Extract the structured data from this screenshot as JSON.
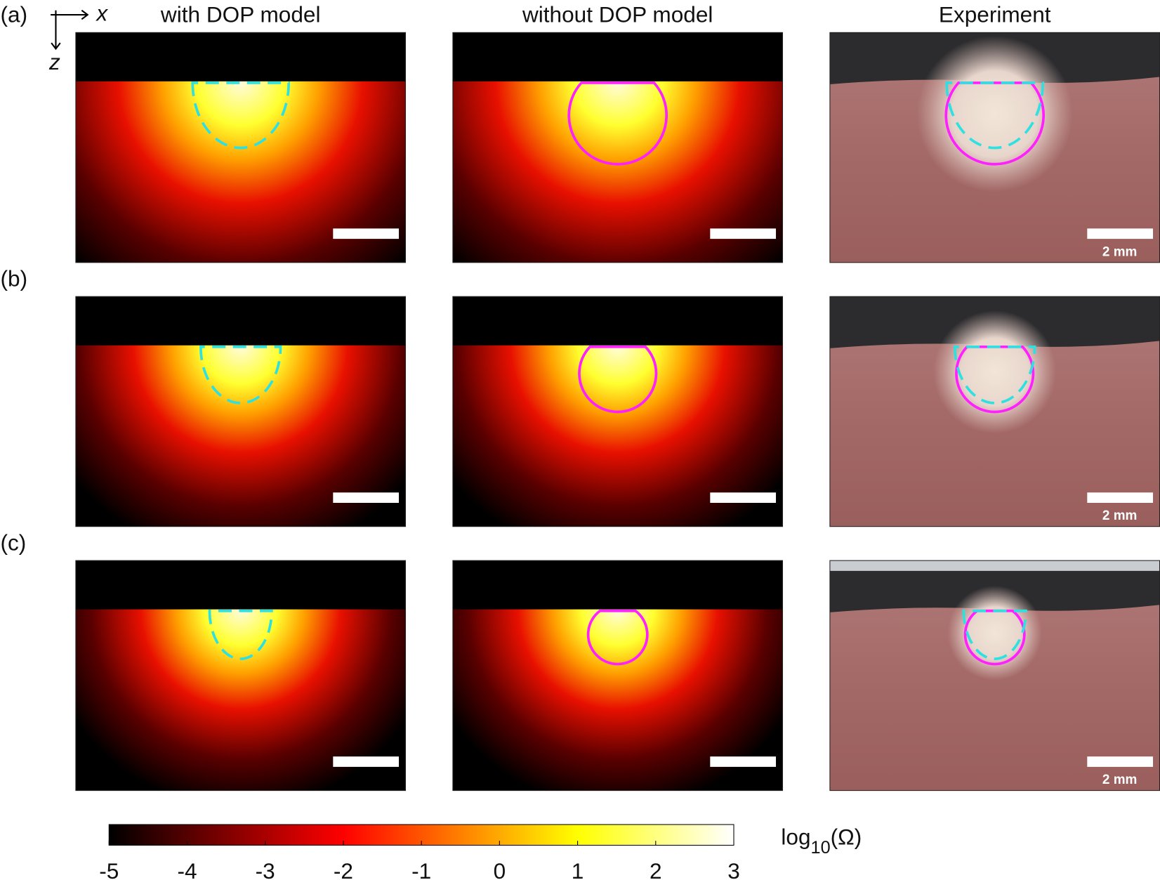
{
  "figure": {
    "column_titles": [
      "with DOP model",
      "without DOP model",
      "Experiment"
    ],
    "row_labels": [
      "(a)",
      "(b)",
      "(c)"
    ],
    "axes": {
      "x": "x",
      "z": "z"
    },
    "scale_bar_labels": [
      "2 mm",
      "2 mm",
      "2 mm"
    ],
    "colorbar": {
      "colormap": "hot",
      "lim": [
        -5,
        3
      ],
      "ticks": [
        -5,
        -4,
        -3,
        -2,
        -1,
        0,
        1,
        2,
        3
      ],
      "label": {
        "base": "log",
        "subscript": "10",
        "argument": "(Ω)"
      }
    }
  }
}
